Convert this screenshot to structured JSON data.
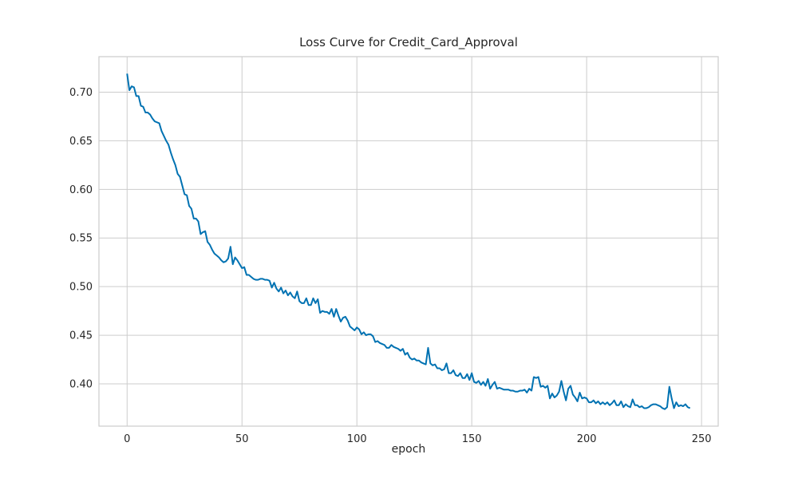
{
  "chart_data": {
    "type": "line",
    "title": "Loss Curve for Credit_Card_Approval",
    "x_label": "epoch",
    "color": "#0072b2",
    "grid": true,
    "xlim": [
      -12.25,
      257.25
    ],
    "ylim": [
      0.3565,
      0.7365
    ],
    "xticks": [
      0,
      50,
      100,
      150,
      200,
      250
    ],
    "yticks": [
      {
        "value": 0.4,
        "label": "0.40"
      },
      {
        "value": 0.45,
        "label": "0.45"
      },
      {
        "value": 0.5,
        "label": "0.50"
      },
      {
        "value": 0.55,
        "label": "0.55"
      },
      {
        "value": 0.6,
        "label": "0.60"
      },
      {
        "value": 0.65,
        "label": "0.65"
      },
      {
        "value": 0.7,
        "label": "0.70"
      }
    ],
    "x": [
      0,
      1,
      2,
      3,
      4,
      5,
      6,
      7,
      8,
      9,
      10,
      11,
      12,
      13,
      14,
      15,
      16,
      17,
      18,
      19,
      20,
      21,
      22,
      23,
      24,
      25,
      26,
      27,
      28,
      29,
      30,
      31,
      32,
      33,
      34,
      35,
      36,
      37,
      38,
      39,
      40,
      41,
      42,
      43,
      44,
      45,
      46,
      47,
      48,
      49,
      50,
      51,
      52,
      53,
      54,
      55,
      56,
      57,
      58,
      59,
      60,
      61,
      62,
      63,
      64,
      65,
      66,
      67,
      68,
      69,
      70,
      71,
      72,
      73,
      74,
      75,
      76,
      77,
      78,
      79,
      80,
      81,
      82,
      83,
      84,
      85,
      86,
      87,
      88,
      89,
      90,
      91,
      92,
      93,
      94,
      95,
      96,
      97,
      98,
      99,
      100,
      101,
      102,
      103,
      104,
      105,
      106,
      107,
      108,
      109,
      110,
      111,
      112,
      113,
      114,
      115,
      116,
      117,
      118,
      119,
      120,
      121,
      122,
      123,
      124,
      125,
      126,
      127,
      128,
      129,
      130,
      131,
      132,
      133,
      134,
      135,
      136,
      137,
      138,
      139,
      140,
      141,
      142,
      143,
      144,
      145,
      146,
      147,
      148,
      149,
      150,
      151,
      152,
      153,
      154,
      155,
      156,
      157,
      158,
      159,
      160,
      161,
      162,
      163,
      164,
      165,
      166,
      167,
      168,
      169,
      170,
      171,
      172,
      173,
      174,
      175,
      176,
      177,
      178,
      179,
      180,
      181,
      182,
      183,
      184,
      185,
      186,
      187,
      188,
      189,
      190,
      191,
      192,
      193,
      194,
      195,
      196,
      197,
      198,
      199,
      200,
      201,
      202,
      203,
      204,
      205,
      206,
      207,
      208,
      209,
      210,
      211,
      212,
      213,
      214,
      215,
      216,
      217,
      218,
      219,
      220,
      221,
      222,
      223,
      224,
      225,
      226,
      227,
      228,
      229,
      230,
      231,
      232,
      233,
      234,
      235,
      236,
      237,
      238,
      239,
      240,
      241,
      242,
      243,
      244,
      245
    ],
    "values": [
      0.719,
      0.702,
      0.706,
      0.705,
      0.696,
      0.696,
      0.686,
      0.685,
      0.679,
      0.679,
      0.677,
      0.673,
      0.67,
      0.669,
      0.668,
      0.66,
      0.655,
      0.65,
      0.646,
      0.638,
      0.631,
      0.625,
      0.616,
      0.613,
      0.604,
      0.595,
      0.594,
      0.583,
      0.58,
      0.57,
      0.57,
      0.567,
      0.554,
      0.556,
      0.557,
      0.546,
      0.543,
      0.538,
      0.534,
      0.532,
      0.53,
      0.527,
      0.525,
      0.526,
      0.529,
      0.541,
      0.523,
      0.53,
      0.527,
      0.523,
      0.519,
      0.52,
      0.512,
      0.512,
      0.51,
      0.508,
      0.507,
      0.507,
      0.508,
      0.508,
      0.507,
      0.507,
      0.506,
      0.499,
      0.504,
      0.498,
      0.495,
      0.499,
      0.493,
      0.496,
      0.491,
      0.494,
      0.49,
      0.488,
      0.495,
      0.485,
      0.483,
      0.483,
      0.488,
      0.481,
      0.481,
      0.488,
      0.483,
      0.487,
      0.473,
      0.475,
      0.474,
      0.474,
      0.472,
      0.477,
      0.469,
      0.477,
      0.47,
      0.464,
      0.468,
      0.469,
      0.465,
      0.459,
      0.457,
      0.455,
      0.458,
      0.456,
      0.451,
      0.453,
      0.45,
      0.451,
      0.451,
      0.449,
      0.443,
      0.444,
      0.442,
      0.441,
      0.44,
      0.437,
      0.437,
      0.44,
      0.438,
      0.437,
      0.436,
      0.434,
      0.436,
      0.43,
      0.432,
      0.427,
      0.425,
      0.426,
      0.424,
      0.424,
      0.422,
      0.421,
      0.42,
      0.437,
      0.421,
      0.419,
      0.42,
      0.416,
      0.416,
      0.414,
      0.415,
      0.421,
      0.411,
      0.411,
      0.414,
      0.409,
      0.408,
      0.411,
      0.406,
      0.406,
      0.41,
      0.404,
      0.411,
      0.402,
      0.401,
      0.403,
      0.399,
      0.402,
      0.398,
      0.405,
      0.395,
      0.399,
      0.402,
      0.395,
      0.396,
      0.395,
      0.394,
      0.394,
      0.394,
      0.393,
      0.393,
      0.392,
      0.392,
      0.393,
      0.393,
      0.394,
      0.391,
      0.395,
      0.393,
      0.407,
      0.406,
      0.407,
      0.397,
      0.398,
      0.396,
      0.398,
      0.385,
      0.39,
      0.386,
      0.388,
      0.392,
      0.403,
      0.392,
      0.383,
      0.395,
      0.398,
      0.389,
      0.386,
      0.382,
      0.391,
      0.385,
      0.386,
      0.385,
      0.381,
      0.381,
      0.383,
      0.38,
      0.382,
      0.379,
      0.381,
      0.379,
      0.381,
      0.378,
      0.38,
      0.383,
      0.378,
      0.378,
      0.382,
      0.376,
      0.379,
      0.377,
      0.376,
      0.384,
      0.378,
      0.378,
      0.376,
      0.377,
      0.375,
      0.375,
      0.376,
      0.378,
      0.379,
      0.379,
      0.378,
      0.377,
      0.375,
      0.374,
      0.376,
      0.397,
      0.385,
      0.375,
      0.381,
      0.377,
      0.378,
      0.377,
      0.379,
      0.376,
      0.375
    ]
  }
}
